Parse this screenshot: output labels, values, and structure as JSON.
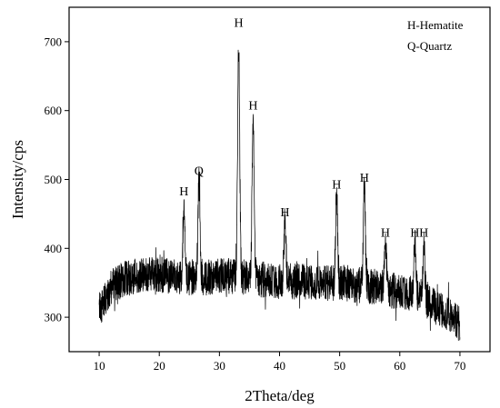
{
  "chart_data": {
    "type": "line",
    "xlabel": "2Theta/deg",
    "ylabel": "Intensity/cps",
    "xlim": [
      5,
      75
    ],
    "ylim": [
      250,
      750
    ],
    "xticks": [
      10,
      20,
      30,
      40,
      50,
      60,
      70
    ],
    "yticks": [
      300,
      400,
      500,
      600,
      700
    ],
    "legend": {
      "position": "top-right",
      "entries": [
        "H-Hematite",
        "Q-Quartz"
      ]
    },
    "series": [
      {
        "x": [
          10,
          12,
          14,
          16,
          18,
          20,
          22,
          24,
          26,
          28,
          30,
          32,
          34,
          36,
          38,
          40,
          42,
          44,
          46,
          48,
          50,
          52,
          54,
          56,
          58,
          60,
          62,
          64,
          66,
          68,
          70
        ],
        "y": [
          310,
          345,
          355,
          360,
          362,
          362,
          360,
          358,
          358,
          358,
          360,
          360,
          358,
          356,
          354,
          352,
          352,
          352,
          350,
          350,
          349,
          348,
          346,
          344,
          340,
          337,
          335,
          325,
          315,
          305,
          290
        ],
        "noise_amplitude": 26
      }
    ],
    "peaks": [
      {
        "x": 24.1,
        "y": 470,
        "label": "H"
      },
      {
        "x": 26.6,
        "y": 500,
        "label": "Q"
      },
      {
        "x": 33.2,
        "y": 715,
        "label": "H"
      },
      {
        "x": 35.6,
        "y": 595,
        "label": "H"
      },
      {
        "x": 40.9,
        "y": 440,
        "label": "H"
      },
      {
        "x": 49.5,
        "y": 480,
        "label": "H"
      },
      {
        "x": 54.1,
        "y": 490,
        "label": "H"
      },
      {
        "x": 57.6,
        "y": 410,
        "label": "H"
      },
      {
        "x": 62.5,
        "y": 410,
        "label": "H"
      },
      {
        "x": 64.0,
        "y": 410,
        "label": "H"
      }
    ],
    "grid": false,
    "line_color": "#000000"
  }
}
